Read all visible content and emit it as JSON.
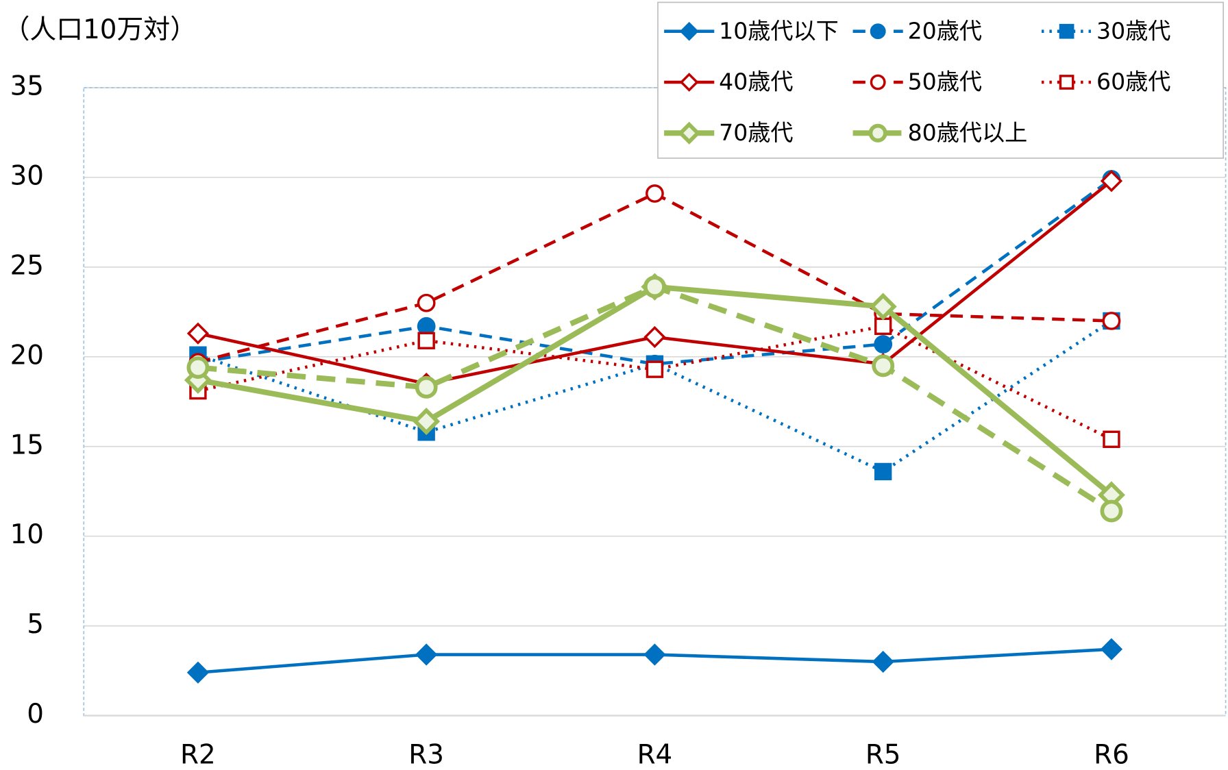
{
  "chart_data": {
    "type": "line",
    "y_axis_label": "（人口10万対）",
    "categories": [
      "R2",
      "R3",
      "R4",
      "R5",
      "R6"
    ],
    "ylim": [
      0,
      35
    ],
    "yticks": [
      0,
      5,
      10,
      15,
      20,
      25,
      30,
      35
    ],
    "grid": true,
    "legend": "top-right",
    "series": [
      {
        "name": "10歳代以下",
        "color": "#0070c0",
        "line_style": "solid",
        "marker": "diamond",
        "marker_fill": "filled",
        "values": [
          2.4,
          3.4,
          3.4,
          3.0,
          3.7
        ]
      },
      {
        "name": "20歳代",
        "color": "#0070c0",
        "line_style": "dashed",
        "marker": "circle",
        "marker_fill": "filled",
        "values": [
          19.7,
          21.7,
          19.6,
          20.7,
          29.9
        ]
      },
      {
        "name": "30歳代",
        "color": "#0070c0",
        "line_style": "dotted",
        "marker": "square",
        "marker_fill": "filled",
        "values": [
          20.1,
          15.8,
          19.6,
          13.6,
          22.0
        ]
      },
      {
        "name": "40歳代",
        "color": "#c00000",
        "line_style": "solid",
        "marker": "diamond",
        "marker_fill": "hollow",
        "values": [
          21.3,
          18.5,
          21.1,
          19.6,
          29.8
        ]
      },
      {
        "name": "50歳代",
        "color": "#c00000",
        "line_style": "dashed",
        "marker": "circle",
        "marker_fill": "hollow",
        "values": [
          19.7,
          23.0,
          29.1,
          22.4,
          22.0
        ]
      },
      {
        "name": "60歳代",
        "color": "#c00000",
        "line_style": "dotted",
        "marker": "square",
        "marker_fill": "hollow",
        "values": [
          18.1,
          20.9,
          19.3,
          21.7,
          15.4
        ]
      },
      {
        "name": "70歳代",
        "color": "#9bbb59",
        "line_style": "solid-thick",
        "marker": "diamond",
        "marker_fill": "hollow",
        "values": [
          18.7,
          16.4,
          23.9,
          22.8,
          12.3
        ]
      },
      {
        "name": "80歳代以上",
        "color": "#9bbb59",
        "line_style": "dashed-thick",
        "marker": "circle",
        "marker_fill": "hollow",
        "values": [
          19.4,
          18.3,
          23.9,
          19.5,
          11.4
        ]
      }
    ]
  }
}
